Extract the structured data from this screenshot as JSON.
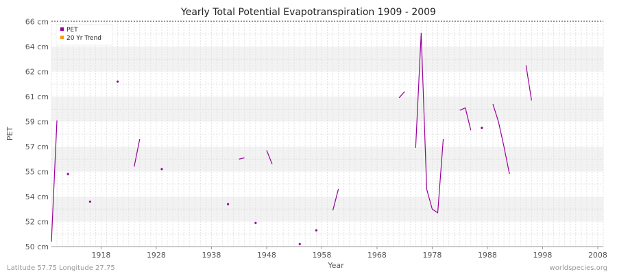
{
  "chart_data": {
    "type": "line",
    "title": "Yearly Total Potential Evapotranspiration 1909 - 2009",
    "xlabel": "Year",
    "ylabel": "PET",
    "x_ticks": [
      "1918",
      "1928",
      "1938",
      "1948",
      "1958",
      "1968",
      "1978",
      "1988",
      "1998",
      "2008"
    ],
    "y_ticks": [
      "50 cm",
      "52 cm",
      "54 cm",
      "55 cm",
      "57 cm",
      "59 cm",
      "61 cm",
      "62 cm",
      "64 cm",
      "66 cm"
    ],
    "legend": {
      "placement": "top-left",
      "entries": [
        {
          "label": "PET",
          "color": "#990099"
        },
        {
          "label": "20 Yr Trend",
          "color": "#ff9900"
        }
      ]
    },
    "grid": true,
    "series": [
      {
        "name": "PET",
        "color": "#990099",
        "points": [
          [
            1909,
            50.4
          ],
          [
            1910,
            59.1
          ],
          [
            1911,
            null
          ],
          [
            1912,
            54.9
          ],
          [
            1913,
            null
          ],
          [
            1916,
            53.6
          ],
          [
            1917,
            null
          ],
          [
            1921,
            61.6
          ],
          [
            1922,
            null
          ],
          [
            1924,
            55.4
          ],
          [
            1925,
            57.6
          ],
          [
            1926,
            null
          ],
          [
            1929,
            55.2
          ],
          [
            1930,
            null
          ],
          [
            1941,
            53.4
          ],
          [
            1942,
            null
          ],
          [
            1943,
            56.0
          ],
          [
            1944,
            56.1
          ],
          [
            1945,
            null
          ],
          [
            1946,
            51.9
          ],
          [
            1947,
            null
          ],
          [
            1948,
            56.7
          ],
          [
            1949,
            55.6
          ],
          [
            1950,
            null
          ],
          [
            1954,
            50.2
          ],
          [
            1955,
            null
          ],
          [
            1957,
            51.3
          ],
          [
            1958,
            null
          ],
          [
            1960,
            52.9
          ],
          [
            1961,
            54.3
          ],
          [
            1962,
            null
          ],
          [
            1972,
            60.9
          ],
          [
            1973,
            61.2
          ],
          [
            1974,
            null
          ],
          [
            1975,
            56.9
          ],
          [
            1976,
            65.1
          ],
          [
            1977,
            54.3
          ],
          [
            1978,
            53.0
          ],
          [
            1979,
            52.7
          ],
          [
            1980,
            57.6
          ],
          [
            1981,
            null
          ],
          [
            1983,
            59.9
          ],
          [
            1984,
            60.1
          ],
          [
            1985,
            58.3
          ],
          [
            1986,
            null
          ],
          [
            1987,
            58.5
          ],
          [
            1988,
            null
          ],
          [
            1989,
            60.4
          ],
          [
            1990,
            59.0
          ],
          [
            1991,
            57.0
          ],
          [
            1992,
            54.9
          ],
          [
            1993,
            null
          ],
          [
            1995,
            62.5
          ],
          [
            1996,
            60.7
          ]
        ]
      },
      {
        "name": "20 Yr Trend",
        "color": "#ff9900",
        "points": []
      }
    ]
  },
  "footer": {
    "left": "Latitude 57.75 Longitude 27.75",
    "right": "worldspecies.org"
  }
}
